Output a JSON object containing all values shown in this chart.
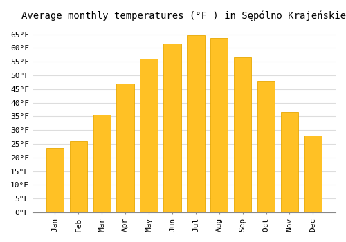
{
  "title": "Average monthly temperatures (°F ) in Sępólno Krajeńskie",
  "months": [
    "Jan",
    "Feb",
    "Mar",
    "Apr",
    "May",
    "Jun",
    "Jul",
    "Aug",
    "Sep",
    "Oct",
    "Nov",
    "Dec"
  ],
  "values": [
    23.5,
    26.0,
    35.5,
    47.0,
    56.0,
    61.5,
    64.5,
    63.5,
    56.5,
    48.0,
    36.5,
    28.0
  ],
  "bar_color": "#FFC125",
  "bar_edge_color": "#E8A800",
  "background_color": "#FFFFFF",
  "grid_color": "#DDDDDD",
  "ylim": [
    0,
    68
  ],
  "yticks": [
    0,
    5,
    10,
    15,
    20,
    25,
    30,
    35,
    40,
    45,
    50,
    55,
    60,
    65
  ],
  "title_fontsize": 10,
  "tick_fontsize": 8,
  "font_family": "monospace"
}
